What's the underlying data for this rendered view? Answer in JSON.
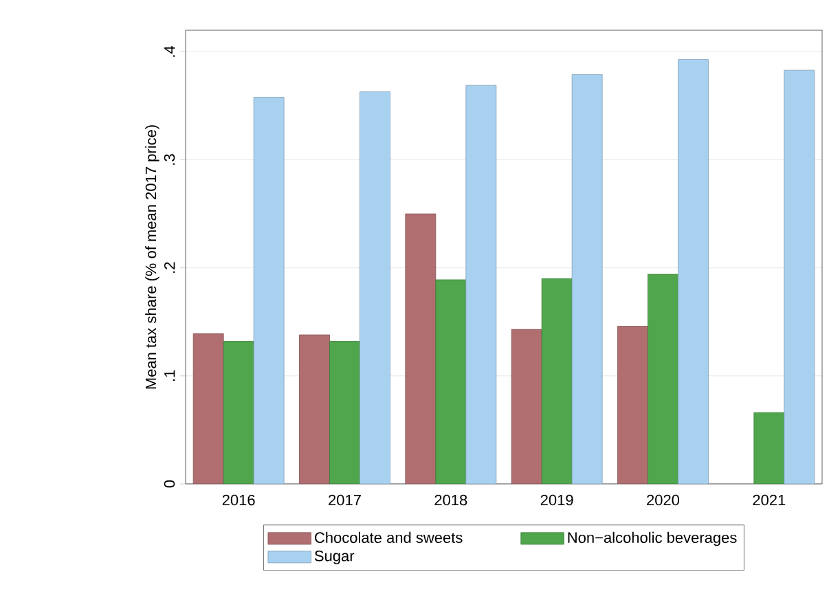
{
  "chart_data": {
    "type": "bar",
    "ylabel": "Mean tax share (% of mean 2017 price)",
    "categories": [
      "2016",
      "2017",
      "2018",
      "2019",
      "2020",
      "2021"
    ],
    "series": [
      {
        "name": "Chocolate and sweets",
        "color": "#b06e70",
        "values": [
          0.139,
          0.138,
          0.25,
          0.143,
          0.146,
          null
        ]
      },
      {
        "name": "Non−alcoholic beverages",
        "color": "#4fa64d",
        "values": [
          0.132,
          0.132,
          0.189,
          0.19,
          0.194,
          0.066
        ]
      },
      {
        "name": "Sugar",
        "color": "#a8d1f0",
        "values": [
          0.358,
          0.363,
          0.369,
          0.379,
          0.393,
          0.383
        ]
      }
    ],
    "ylim": [
      0,
      0.42
    ],
    "yticks": [
      0,
      {
        "value": 0.1,
        "label": ".1"
      },
      {
        "value": 0.2,
        "label": ".2"
      },
      {
        "value": 0.3,
        "label": ".3"
      },
      {
        "value": 0.4,
        "label": ".4"
      }
    ],
    "grid": "y",
    "legend": "bottom"
  }
}
